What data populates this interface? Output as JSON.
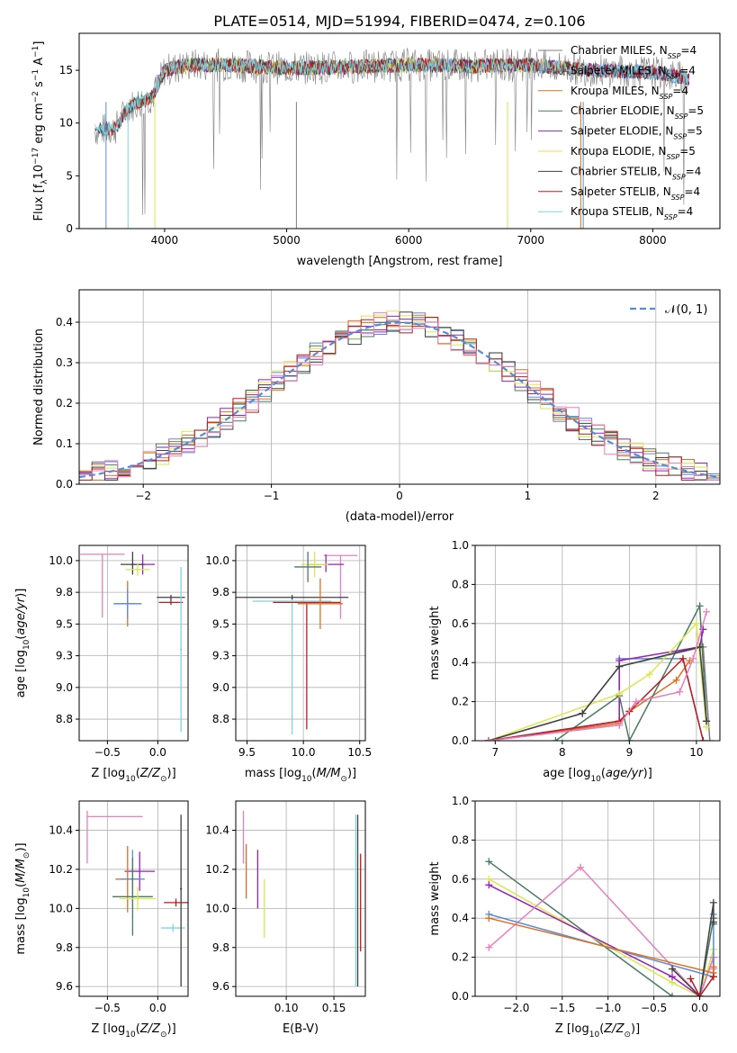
{
  "figure_title": "PLATE=0514, MJD=51994, FIBERID=0474, z=0.106",
  "colors": {
    "chabrier_miles": "#808080",
    "salpeter_miles": "#5b8bd6",
    "kroupa_miles": "#e07020",
    "chabrier_elodie": "#4a7a60",
    "salpeter_elodie": "#9a20b8",
    "kroupa_elodie": "#d9e84a",
    "chabrier_stelib": "#404040",
    "salpeter_stelib": "#b81c1c",
    "kroupa_stelib": "#7fd3e0",
    "pink": "#e77fbf",
    "gauss": "#5b8bd6"
  },
  "chart_data": [
    {
      "id": "spectrum",
      "type": "line",
      "xlabel": "wavelength [Angstrom, rest frame]",
      "ylabel": "Flux [f_λ 10^-17 erg cm^-2 s^-1 A^-1]",
      "xlim": [
        3300,
        8550
      ],
      "ylim": [
        0,
        18.5
      ],
      "xticks": [
        4000,
        5000,
        6000,
        7000,
        8000
      ],
      "yticks": [
        0,
        5,
        10,
        15
      ],
      "grid": false,
      "legend_position": "right",
      "legend": [
        {
          "label": "Chabrier MILES, N_SSP=4",
          "color": "chabrier_miles"
        },
        {
          "label": "Salpeter MILES, N_SSP=4",
          "color": "salpeter_miles"
        },
        {
          "label": "Kroupa MILES, N_SSP=4",
          "color": "kroupa_miles"
        },
        {
          "label": "Chabrier ELODIE, N_SSP=5",
          "color": "chabrier_elodie"
        },
        {
          "label": "Salpeter ELODIE, N_SSP=5",
          "color": "salpeter_elodie"
        },
        {
          "label": "Kroupa ELODIE, N_SSP=5",
          "color": "kroupa_elodie"
        },
        {
          "label": "Chabrier STELIB, N_SSP=4",
          "color": "chabrier_stelib"
        },
        {
          "label": "Salpeter STELIB, N_SSP=4",
          "color": "salpeter_stelib"
        },
        {
          "label": "Kroupa STELIB, N_SSP=4",
          "color": "kroupa_stelib"
        }
      ],
      "data_trend": {
        "x": [
          3430,
          3600,
          3700,
          3800,
          3900,
          4000,
          4200,
          4500,
          5000,
          5500,
          6000,
          6500,
          7000,
          7500,
          8000,
          8300
        ],
        "y": [
          9.3,
          9.5,
          11.5,
          12.0,
          12.5,
          15.0,
          15.5,
          15.5,
          15.2,
          15.3,
          15.5,
          15.4,
          15.5,
          15.0,
          14.8,
          14.2
        ]
      }
    },
    {
      "id": "residuals",
      "type": "step",
      "xlabel": "(data-model)/error",
      "ylabel": "Normed distribution",
      "xlim": [
        -2.5,
        2.5
      ],
      "ylim": [
        0,
        0.48
      ],
      "xticks": [
        -2,
        -1,
        0,
        1,
        2
      ],
      "yticks": [
        0.0,
        0.1,
        0.2,
        0.3,
        0.4
      ],
      "grid": true,
      "legend_position": "top-right",
      "legend": [
        {
          "label": "𝒩(0, 1)",
          "color": "gauss"
        }
      ]
    },
    {
      "id": "age_vs_Z",
      "type": "errorbar",
      "xlabel": "Z [log10(Z/Z⊙)]",
      "ylabel": "age  [log10(age/yr)]",
      "xlim": [
        -0.78,
        0.3
      ],
      "ylim": [
        8.58,
        10.12
      ],
      "xticks": [
        -0.5,
        0.0
      ],
      "yticks": [
        8.75,
        9.0,
        9.25,
        9.5,
        9.75,
        10.0
      ],
      "grid": true,
      "points": [
        {
          "x": -0.55,
          "y": 10.05,
          "xerr": 0.22,
          "yerr": [
            0.5,
            0.0
          ],
          "color": "pink"
        },
        {
          "x": -0.15,
          "y": 9.97,
          "xerr": 0.12,
          "yerr": [
            0.08,
            0.08
          ],
          "color": "salpeter_elodie"
        },
        {
          "x": -0.25,
          "y": 9.97,
          "xerr": 0.12,
          "yerr": [
            0.08,
            0.1
          ],
          "color": "chabrier_stelib"
        },
        {
          "x": -0.2,
          "y": 9.93,
          "xerr": 0.12,
          "yerr": [
            0.05,
            0.05
          ],
          "color": "kroupa_elodie"
        },
        {
          "x": -0.3,
          "y": 9.66,
          "xerr": 0.12,
          "yerr": [
            0.18,
            0.18
          ],
          "color": "kroupa_miles"
        },
        {
          "x": -0.3,
          "y": 9.66,
          "xerr": 0.14,
          "yerr": [
            0.12,
            0.12
          ],
          "color": "salpeter_miles"
        },
        {
          "x": 0.13,
          "y": 9.71,
          "xerr": 0.14,
          "yerr": [
            0.02,
            0.02
          ],
          "color": "chabrier_stelib"
        },
        {
          "x": 0.13,
          "y": 9.67,
          "xerr": 0.12,
          "yerr": [
            0.02,
            0.02
          ],
          "color": "salpeter_stelib"
        },
        {
          "x": 0.23,
          "y": 9.3,
          "xerr": 0.01,
          "yerr": [
            0.65,
            0.65
          ],
          "color": "kroupa_stelib"
        }
      ]
    },
    {
      "id": "age_vs_mass",
      "type": "errorbar",
      "xlabel": "mass [log10(M/M⊙)]",
      "ylabel": "",
      "xlim": [
        9.4,
        10.55
      ],
      "ylim": [
        8.58,
        10.12
      ],
      "xticks": [
        9.5,
        10.0,
        10.5
      ],
      "yticks": [
        8.75,
        9.0,
        9.25,
        9.5,
        9.75,
        10.0
      ],
      "grid": true,
      "points": [
        {
          "x": 10.33,
          "y": 10.04,
          "xerr": 0.15,
          "yerr": [
            0.5,
            0.0
          ],
          "color": "pink"
        },
        {
          "x": 10.2,
          "y": 9.97,
          "xerr": 0.16,
          "yerr": [
            0.06,
            0.08
          ],
          "color": "salpeter_elodie"
        },
        {
          "x": 10.1,
          "y": 9.97,
          "xerr": 0.12,
          "yerr": [
            0.1,
            0.1
          ],
          "color": "kroupa_elodie"
        },
        {
          "x": 10.04,
          "y": 9.95,
          "xerr": 0.12,
          "yerr": [
            0.12,
            0.12
          ],
          "color": "chabrier_elodie"
        },
        {
          "x": 9.9,
          "y": 9.71,
          "xerr": 0.5,
          "yerr": [
            0.02,
            0.02
          ],
          "color": "chabrier_stelib"
        },
        {
          "x": 9.9,
          "y": 9.68,
          "xerr": 0.35,
          "yerr": [
            1.05,
            0.0
          ],
          "color": "kroupa_stelib"
        },
        {
          "x": 10.03,
          "y": 9.67,
          "xerr": 0.3,
          "yerr": [
            1.0,
            0.0
          ],
          "color": "salpeter_stelib"
        },
        {
          "x": 10.15,
          "y": 9.66,
          "xerr": 0.2,
          "yerr": [
            0.2,
            0.2
          ],
          "color": "kroupa_miles"
        }
      ]
    },
    {
      "id": "mass_weight_vs_age",
      "type": "line",
      "xlabel": "age  [log10(age/yr)]",
      "ylabel": "mass weight",
      "xlim": [
        6.7,
        10.35
      ],
      "ylim": [
        0,
        1.0
      ],
      "xticks": [
        7,
        8,
        9,
        10
      ],
      "yticks": [
        0.0,
        0.2,
        0.4,
        0.6,
        0.8,
        1.0
      ],
      "grid": true,
      "series": [
        {
          "color": "chabrier_miles",
          "x": [
            6.9,
            8.3,
            8.85,
            10.1,
            10.2
          ],
          "y": [
            0.0,
            0.14,
            0.38,
            0.48,
            0.0
          ]
        },
        {
          "color": "salpeter_miles",
          "x": [
            6.9,
            8.85,
            8.85,
            9.8,
            10.1
          ],
          "y": [
            0.0,
            0.08,
            0.42,
            0.42,
            0.0
          ]
        },
        {
          "color": "kroupa_miles",
          "x": [
            6.9,
            8.85,
            9.0,
            9.7,
            9.9
          ],
          "y": [
            0.0,
            0.09,
            0.15,
            0.31,
            0.41
          ]
        },
        {
          "color": "chabrier_elodie",
          "x": [
            7.9,
            8.85,
            9.0,
            10.05,
            10.15
          ],
          "y": [
            0.0,
            0.23,
            0.0,
            0.69,
            0.1
          ]
        },
        {
          "color": "salpeter_elodie",
          "x": [
            6.9,
            8.85,
            8.85,
            10.05,
            10.1
          ],
          "y": [
            0.0,
            0.1,
            0.41,
            0.48,
            0.57
          ]
        },
        {
          "color": "kroupa_elodie",
          "x": [
            6.9,
            8.85,
            9.3,
            10.0,
            10.15
          ],
          "y": [
            0.0,
            0.24,
            0.34,
            0.6,
            0.07
          ]
        },
        {
          "color": "chabrier_stelib",
          "x": [
            6.9,
            8.3,
            8.85,
            10.05,
            10.15
          ],
          "y": [
            0.0,
            0.14,
            0.38,
            0.48,
            0.1
          ]
        },
        {
          "color": "salpeter_stelib",
          "x": [
            6.9,
            8.85,
            9.0,
            9.8,
            10.1
          ],
          "y": [
            0.0,
            0.1,
            0.15,
            0.42,
            0.0
          ]
        },
        {
          "color": "pink",
          "x": [
            6.9,
            8.85,
            9.1,
            9.75,
            9.95,
            10.15
          ],
          "y": [
            0.0,
            0.08,
            0.2,
            0.25,
            0.42,
            0.66
          ]
        }
      ]
    },
    {
      "id": "mass_vs_Z",
      "type": "errorbar",
      "xlabel": "Z [log10(Z/Z⊙)]",
      "ylabel": "mass [log10(M/M⊙)]",
      "xlim": [
        -0.78,
        0.3
      ],
      "ylim": [
        9.55,
        10.55
      ],
      "xticks": [
        -0.5,
        0.0
      ],
      "yticks": [
        9.6,
        9.8,
        10.0,
        10.2,
        10.4
      ],
      "grid": true,
      "points": [
        {
          "x": -0.7,
          "y": 10.47,
          "xerr": [
            0.0,
            0.55
          ],
          "yerr": [
            0.24,
            0.03
          ],
          "color": "pink"
        },
        {
          "x": -0.18,
          "y": 10.19,
          "xerr": 0.15,
          "yerr": [
            0.1,
            0.1
          ],
          "color": "salpeter_elodie"
        },
        {
          "x": -0.3,
          "y": 10.15,
          "xerr": 0.12,
          "yerr": [
            0.17,
            0.17
          ],
          "color": "kroupa_miles"
        },
        {
          "x": -0.25,
          "y": 10.15,
          "xerr": 0.12,
          "yerr": [
            0.15,
            0.15
          ],
          "color": "salpeter_miles"
        },
        {
          "x": -0.25,
          "y": 10.06,
          "xerr": 0.2,
          "yerr": [
            0.2,
            0.2
          ],
          "color": "chabrier_elodie"
        },
        {
          "x": -0.2,
          "y": 10.05,
          "xerr": 0.18,
          "yerr": [
            0.06,
            0.06
          ],
          "color": "kroupa_elodie"
        },
        {
          "x": 0.18,
          "y": 10.03,
          "xerr": 0.12,
          "yerr": [
            0.02,
            0.02
          ],
          "color": "salpeter_stelib"
        },
        {
          "x": 0.15,
          "y": 9.9,
          "xerr": 0.12,
          "yerr": [
            0.02,
            0.02
          ],
          "color": "kroupa_stelib"
        },
        {
          "x": 0.23,
          "y": 10.1,
          "xerr": 0.01,
          "yerr": [
            0.5,
            0.38
          ],
          "color": "chabrier_stelib"
        }
      ]
    },
    {
      "id": "mass_vs_ebv",
      "type": "errorbar",
      "xlabel": "E(B-V)",
      "ylabel": "",
      "xlim": [
        0.047,
        0.183
      ],
      "ylim": [
        9.55,
        10.55
      ],
      "xticks": [
        0.1,
        0.15
      ],
      "yticks": [
        9.6,
        9.8,
        10.0,
        10.2,
        10.4
      ],
      "grid": true,
      "points": [
        {
          "x": 0.055,
          "y": 10.37,
          "xerr": 0.0,
          "yerr": [
            0.14,
            0.13
          ],
          "color": "pink"
        },
        {
          "x": 0.058,
          "y": 10.2,
          "xerr": 0.0,
          "yerr": [
            0.15,
            0.13
          ],
          "color": "kroupa_miles"
        },
        {
          "x": 0.07,
          "y": 10.15,
          "xerr": 0.0,
          "yerr": [
            0.15,
            0.15
          ],
          "color": "salpeter_elodie"
        },
        {
          "x": 0.077,
          "y": 10.05,
          "xerr": 0.0,
          "yerr": [
            0.2,
            0.1
          ],
          "color": "kroupa_elodie"
        },
        {
          "x": 0.175,
          "y": 10.05,
          "xerr": 0.0,
          "yerr": [
            0.45,
            0.43
          ],
          "color": "chabrier_stelib"
        },
        {
          "x": 0.173,
          "y": 10.05,
          "xerr": 0.0,
          "yerr": [
            0.45,
            0.43
          ],
          "color": "kroupa_stelib"
        },
        {
          "x": 0.178,
          "y": 10.03,
          "xerr": 0.0,
          "yerr": [
            0.25,
            0.25
          ],
          "color": "salpeter_stelib"
        }
      ]
    },
    {
      "id": "mass_weight_vs_Z",
      "type": "line",
      "xlabel": "Z [log10(Z/Z⊙)]",
      "ylabel": "mass weight",
      "xlim": [
        -2.45,
        0.22
      ],
      "ylim": [
        0,
        1.0
      ],
      "xticks": [
        -2.0,
        -1.5,
        -1.0,
        -0.5,
        0.0
      ],
      "yticks": [
        0.0,
        0.2,
        0.4,
        0.6,
        0.8,
        1.0
      ],
      "grid": true,
      "series": [
        {
          "color": "chabrier_elodie",
          "x": [
            -2.3,
            -0.3,
            0.0,
            0.15,
            0.15
          ],
          "y": [
            0.69,
            0.0,
            0.0,
            0.4,
            0.37
          ]
        },
        {
          "color": "kroupa_elodie",
          "x": [
            -2.3,
            -0.3,
            0.0,
            0.15,
            0.15
          ],
          "y": [
            0.6,
            0.07,
            0.0,
            0.24,
            0.1
          ]
        },
        {
          "color": "salpeter_elodie",
          "x": [
            -2.3,
            -0.3,
            0.0,
            0.15,
            0.15
          ],
          "y": [
            0.57,
            0.1,
            0.0,
            0.2,
            0.1
          ]
        },
        {
          "color": "pink",
          "x": [
            -2.3,
            -1.3,
            0.0,
            0.15,
            0.15
          ],
          "y": [
            0.25,
            0.66,
            0.0,
            0.2,
            0.14
          ]
        },
        {
          "color": "salpeter_miles",
          "x": [
            -2.3,
            0.15,
            0.15
          ],
          "y": [
            0.42,
            0.1,
            0.42
          ]
        },
        {
          "color": "kroupa_miles",
          "x": [
            -2.3,
            0.15,
            0.15
          ],
          "y": [
            0.4,
            0.12,
            0.15
          ]
        },
        {
          "color": "chabrier_stelib",
          "x": [
            -0.3,
            0.0,
            0.15,
            0.15
          ],
          "y": [
            0.14,
            0.0,
            0.48,
            0.38
          ]
        },
        {
          "color": "salpeter_stelib",
          "x": [
            -0.1,
            0.0,
            0.15
          ],
          "y": [
            0.09,
            0.0,
            0.1
          ]
        }
      ]
    }
  ]
}
